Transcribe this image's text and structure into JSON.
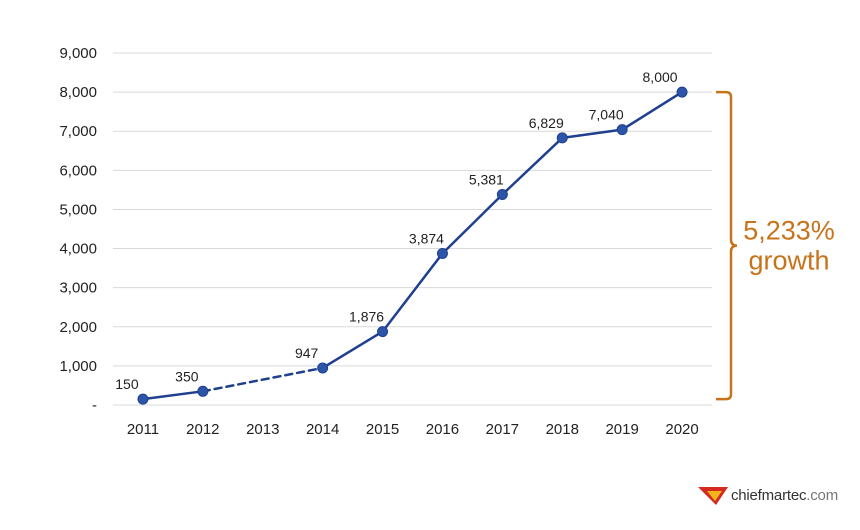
{
  "chart_data": {
    "type": "line",
    "title": "",
    "xlabel": "",
    "ylabel": "",
    "categories": [
      "2011",
      "2012",
      "2013",
      "2014",
      "2015",
      "2016",
      "2017",
      "2018",
      "2019",
      "2020"
    ],
    "series": [
      {
        "values": [
          150,
          350,
          null,
          947,
          1876,
          3874,
          5381,
          6829,
          7040,
          8000
        ],
        "data_labels": [
          "150",
          "350",
          "",
          "947",
          "1,876",
          "3,874",
          "5,381",
          "6,829",
          "7,040",
          "8,000"
        ],
        "dashed_gap": [
          "2012",
          "2014"
        ]
      }
    ],
    "ylim": [
      0,
      9000
    ],
    "y_ticks": [
      0,
      1000,
      2000,
      3000,
      4000,
      5000,
      6000,
      7000,
      8000,
      9000
    ],
    "y_tick_labels": [
      "-",
      "1,000",
      "2,000",
      "3,000",
      "4,000",
      "5,000",
      "6,000",
      "7,000",
      "8,000",
      "9,000"
    ],
    "grid": true,
    "legend": "none",
    "annotation": {
      "line1": "5,233%",
      "line2": "growth",
      "from": 150,
      "to": 8000
    }
  },
  "colors": {
    "line": "#1f3f8f",
    "marker": "#2c55a8",
    "grid": "#d9d9d9",
    "annotation": "#c8731a",
    "logo_red": "#d42a1f",
    "logo_yellow": "#f2b51c"
  },
  "logo": {
    "brand": "chiefmartec",
    "tld": ".com"
  }
}
